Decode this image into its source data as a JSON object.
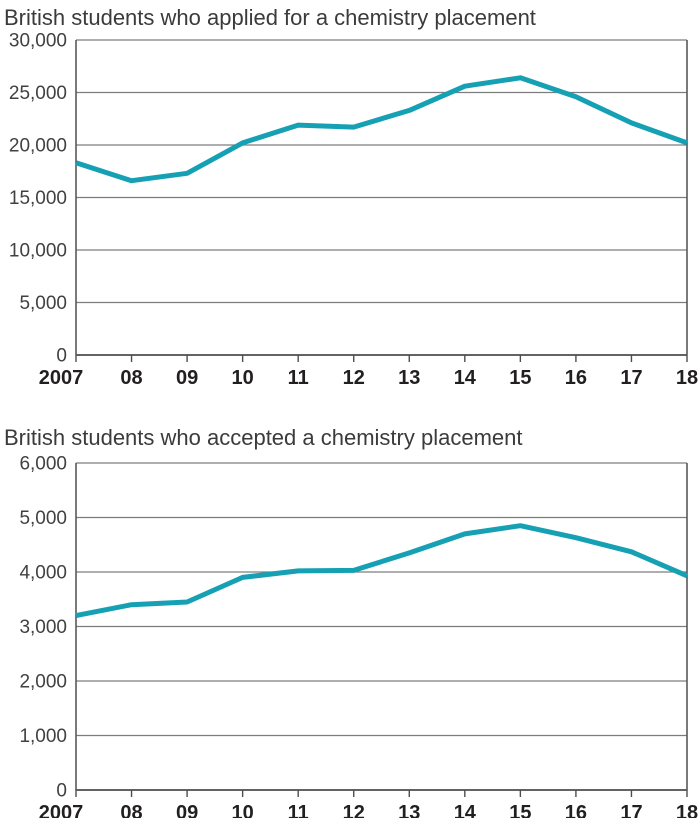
{
  "page_background": "#ffffff",
  "chart_data": [
    {
      "type": "line",
      "title": "British students who applied for a chemistry placement",
      "categories": [
        "2007",
        "08",
        "09",
        "10",
        "11",
        "12",
        "13",
        "14",
        "15",
        "16",
        "17",
        "18"
      ],
      "values": [
        18300,
        16600,
        17300,
        20200,
        21900,
        21700,
        23300,
        25600,
        26400,
        24600,
        22100,
        20200
      ],
      "xlabel": "",
      "ylabel": "",
      "ylim": [
        0,
        30000
      ],
      "ytick_step": 5000,
      "ytick_labels": [
        "0",
        "5,000",
        "10,000",
        "15,000",
        "20,000",
        "25,000",
        "30,000"
      ],
      "grid": "horizontal",
      "legend": "none",
      "line_color": "#16a0b4"
    },
    {
      "type": "line",
      "title": "British students who accepted a chemistry placement",
      "categories": [
        "2007",
        "08",
        "09",
        "10",
        "11",
        "12",
        "13",
        "14",
        "15",
        "16",
        "17",
        "18"
      ],
      "values": [
        3200,
        3400,
        3450,
        3900,
        4020,
        4030,
        4350,
        4700,
        4850,
        4630,
        4370,
        3930
      ],
      "xlabel": "",
      "ylabel": "",
      "ylim": [
        0,
        6000
      ],
      "ytick_step": 1000,
      "ytick_labels": [
        "0",
        "1,000",
        "2,000",
        "3,000",
        "4,000",
        "5,000",
        "6,000"
      ],
      "grid": "horizontal",
      "legend": "none",
      "line_color": "#16a0b4"
    }
  ]
}
